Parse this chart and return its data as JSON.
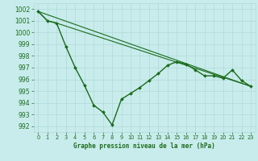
{
  "title": "Graphe pression niveau de la mer (hPa)",
  "background_color": "#c8ecec",
  "grid_color": "#b0d8d8",
  "line_color": "#1a6b1a",
  "xlim": [
    -0.5,
    23.5
  ],
  "ylim": [
    991.5,
    1002.5
  ],
  "yticks": [
    992,
    993,
    994,
    995,
    996,
    997,
    998,
    999,
    1000,
    1001,
    1002
  ],
  "xticks": [
    0,
    1,
    2,
    3,
    4,
    5,
    6,
    7,
    8,
    9,
    10,
    11,
    12,
    13,
    14,
    15,
    16,
    17,
    18,
    19,
    20,
    21,
    22,
    23
  ],
  "series_main": {
    "x": [
      0,
      1,
      2,
      3,
      4,
      5,
      6,
      7,
      8,
      9,
      10,
      11,
      12,
      13,
      14,
      15,
      16,
      17,
      18,
      19,
      20,
      21,
      22,
      23
    ],
    "y": [
      1001.8,
      1001.0,
      1000.8,
      998.8,
      997.0,
      995.5,
      993.8,
      993.2,
      992.1,
      994.3,
      994.8,
      995.3,
      995.9,
      996.5,
      997.2,
      997.5,
      997.3,
      996.8,
      996.3,
      996.3,
      996.1,
      996.8,
      995.9,
      995.4
    ]
  },
  "trend_lines": [
    {
      "x": [
        0,
        23
      ],
      "y": [
        1001.8,
        995.4
      ]
    },
    {
      "x": [
        0,
        1,
        2,
        23
      ],
      "y": [
        1001.8,
        1001.0,
        1000.8,
        995.4
      ]
    }
  ]
}
